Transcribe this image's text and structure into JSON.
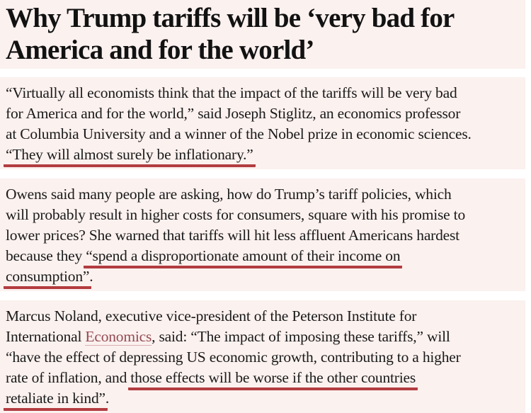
{
  "colors": {
    "page_background": "#ffffff",
    "block_background": "#fbf1ef",
    "headline_color": "#121212",
    "body_color": "#1a1a1a",
    "annotation_underline": "#b23c40",
    "link_color": "#954a52",
    "link_underline": "#dbb0b2"
  },
  "headline": {
    "lines": [
      "Why Trump tariffs will be ‘very bad for",
      "America and for the world’"
    ]
  },
  "paragraphs": [
    {
      "lines": [
        {
          "segments": [
            {
              "text": "“Virtually all economists think that the impact of the tariffs will be very bad",
              "style": "normal"
            }
          ]
        },
        {
          "segments": [
            {
              "text": "for America and for the world,” said Joseph Stiglitz, an economics professor",
              "style": "normal"
            }
          ]
        },
        {
          "segments": [
            {
              "text": "at Columbia University and a winner of the Nobel prize in economic sciences.",
              "style": "normal"
            }
          ]
        },
        {
          "segments": [
            {
              "text": "“They will almost surely be inflationary.”",
              "style": "underline"
            }
          ]
        }
      ]
    },
    {
      "lines": [
        {
          "segments": [
            {
              "text": "Owens said many people are asking, how do Trump’s tariff policies, which",
              "style": "normal"
            }
          ]
        },
        {
          "segments": [
            {
              "text": "will probably result in higher costs for consumers, square with his promise to",
              "style": "normal"
            }
          ]
        },
        {
          "segments": [
            {
              "text": "lower prices? She warned that tariffs will hit less affluent Americans hardest",
              "style": "normal"
            }
          ]
        },
        {
          "segments": [
            {
              "text": "because they ",
              "style": "normal"
            },
            {
              "text": "“spend a disproportionate amount of their income on",
              "style": "underline"
            }
          ]
        },
        {
          "segments": [
            {
              "text": "consumption”",
              "style": "underline"
            },
            {
              "text": ".",
              "style": "normal"
            }
          ]
        }
      ]
    },
    {
      "lines": [
        {
          "segments": [
            {
              "text": "Marcus Noland, executive vice-president of the Peterson Institute for",
              "style": "normal"
            }
          ]
        },
        {
          "segments": [
            {
              "text": "International ",
              "style": "normal"
            },
            {
              "text": "Economics",
              "style": "link"
            },
            {
              "text": ", said: “The impact of imposing these tariffs,” will",
              "style": "normal"
            }
          ]
        },
        {
          "segments": [
            {
              "text": "“have the effect of depressing US economic growth, contributing to a higher",
              "style": "normal"
            }
          ]
        },
        {
          "segments": [
            {
              "text": "rate of inflation, and ",
              "style": "normal"
            },
            {
              "text": "those effects will be worse if the other countries",
              "style": "underline"
            }
          ]
        },
        {
          "segments": [
            {
              "text": "retaliate in kind”",
              "style": "underline"
            },
            {
              "text": ".",
              "style": "normal"
            }
          ]
        }
      ]
    }
  ]
}
